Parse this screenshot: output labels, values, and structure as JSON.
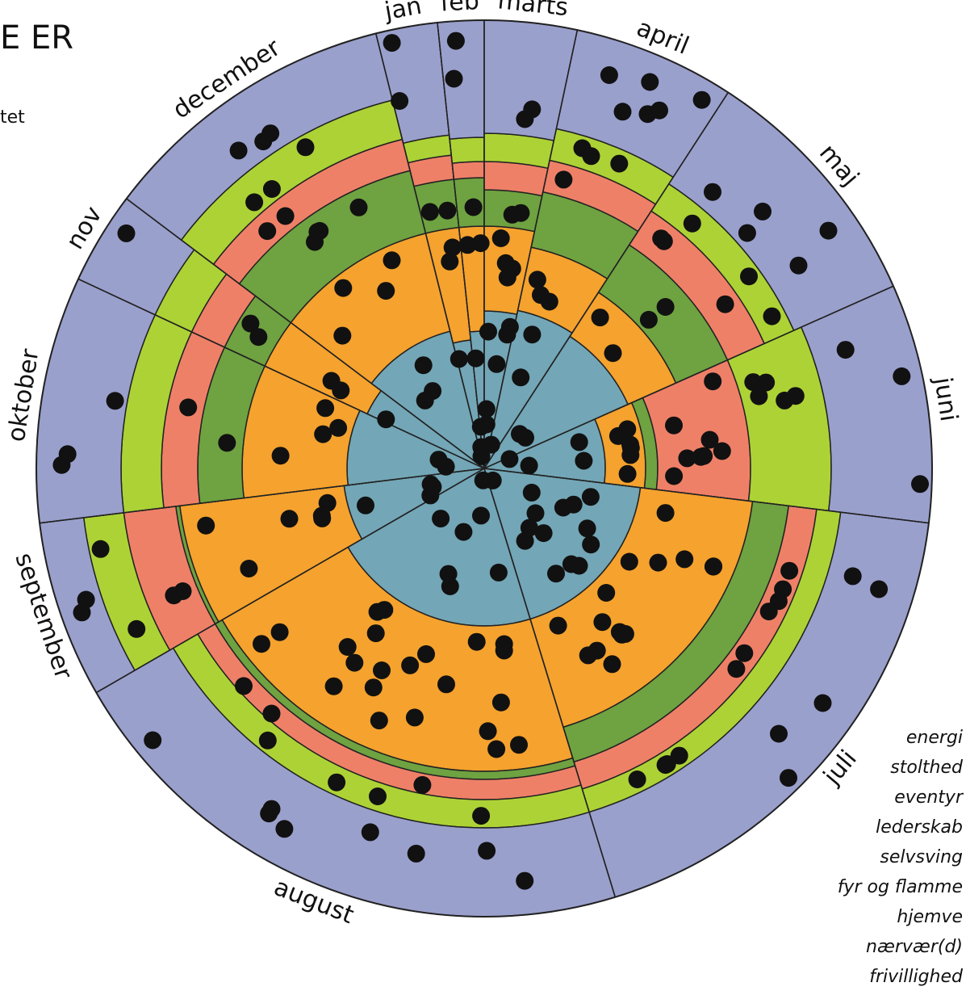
{
  "title": "E ER",
  "subtitle": "tet",
  "chart_data": {
    "type": "radial-bar",
    "months": [
      "jan",
      "feb",
      "marts",
      "april",
      "maj",
      "juni",
      "juli",
      "august",
      "september",
      "oktober",
      "nov",
      "december"
    ],
    "month_start_deg": [
      -14,
      -6,
      0,
      12,
      33,
      66,
      97,
      163,
      240,
      263,
      295,
      307
    ],
    "month_end_deg": [
      -6,
      0,
      12,
      33,
      66,
      97,
      163,
      240,
      263,
      295,
      307,
      346
    ],
    "layers": [
      "layer-1",
      "layer-2",
      "layer-3",
      "layer-4",
      "layer-5",
      "layer-6"
    ],
    "layer_colors": [
      "#73a6b6",
      "#f5a22e",
      "#6fa241",
      "#ef8068",
      "#add236",
      "#9aa0cc"
    ],
    "ring_radii": [
      [
        0,
        195
      ],
      [
        195,
        315
      ],
      [
        315,
        370
      ],
      [
        370,
        420
      ],
      [
        420,
        470
      ],
      [
        470,
        555
      ]
    ],
    "month_layer_reach": [
      [
        2,
        2,
        3,
        4,
        5,
        6
      ],
      [
        2,
        3,
        4,
        5,
        5,
        6
      ],
      [
        2,
        3,
        4,
        5,
        5,
        6
      ],
      [
        1,
        2,
        3,
        4,
        5,
        6
      ],
      [
        1,
        2,
        3,
        4,
        5,
        6
      ],
      [
        1,
        2,
        3,
        3,
        5,
        6
      ],
      [
        2,
        2,
        3,
        4,
        5,
        6
      ],
      [
        2,
        2,
        3,
        4,
        5,
        6
      ],
      [
        1,
        1,
        1,
        4,
        5,
        6
      ],
      [
        1,
        2,
        3,
        4,
        5,
        6
      ],
      [
        1,
        2,
        3,
        4,
        5,
        6
      ],
      [
        1,
        2,
        3,
        4,
        5,
        6
      ]
    ],
    "layer_outer_radius_by_month": [
      [
        160,
        300,
        360,
        390,
        415,
        555
      ],
      [
        170,
        300,
        360,
        380,
        410,
        555
      ],
      [
        195,
        300,
        345,
        380,
        415,
        555
      ],
      [
        200,
        280,
        350,
        390,
        430,
        555
      ],
      [
        195,
        260,
        330,
        380,
        420,
        555
      ],
      [
        150,
        200,
        215,
        330,
        430,
        555
      ],
      [
        195,
        335,
        380,
        415,
        445,
        555
      ],
      [
        195,
        375,
        385,
        410,
        445,
        555
      ],
      [
        175,
        380,
        385,
        450,
        500,
        555
      ],
      [
        170,
        300,
        355,
        400,
        450,
        555
      ],
      [
        160,
        300,
        355,
        400,
        450,
        555
      ],
      [
        175,
        300,
        380,
        420,
        470,
        555
      ]
    ],
    "dot_counts": [
      [
        3,
        2,
        2,
        0,
        0,
        2
      ],
      [
        2,
        2,
        1,
        0,
        0,
        2
      ],
      [
        6,
        4,
        2,
        0,
        0,
        2
      ],
      [
        3,
        3,
        0,
        1,
        3,
        6
      ],
      [
        2,
        2,
        2,
        3,
        3,
        5
      ],
      [
        4,
        6,
        0,
        8,
        5,
        3
      ],
      [
        14,
        15,
        0,
        6,
        4,
        5
      ],
      [
        7,
        22,
        0,
        3,
        4,
        8
      ],
      [
        4,
        6,
        0,
        2,
        2,
        2
      ],
      [
        2,
        4,
        1,
        1,
        0,
        3
      ],
      [
        1,
        2,
        2,
        0,
        0,
        1
      ],
      [
        3,
        4,
        4,
        2,
        3,
        3
      ]
    ],
    "legend": [
      "energi",
      "stolthed",
      "eventyr",
      "lederskab",
      "selvsving",
      "fyr og flamme",
      "hjemve",
      "nærvær(d)",
      "frivillighed"
    ]
  }
}
